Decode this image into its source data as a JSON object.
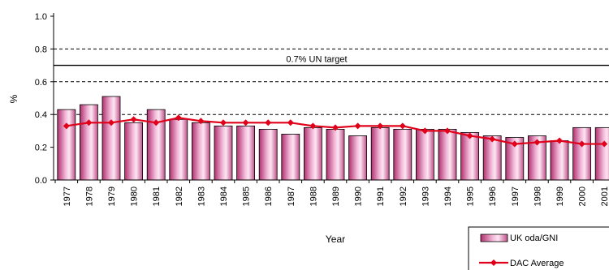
{
  "chart_data": {
    "type": "bar",
    "title": "",
    "xlabel": "Year",
    "ylabel": "%",
    "ylim": [
      0,
      1.0
    ],
    "y_ticks": [
      "0.0",
      "0.2",
      "0.4",
      "0.6",
      "0.8",
      "1.0"
    ],
    "grid": "dashed at 0.4, 0.6, 0.8",
    "categories": [
      "1977",
      "1978",
      "1979",
      "1980",
      "1981",
      "1982",
      "1983",
      "1984",
      "1985",
      "1986",
      "1987",
      "1988",
      "1989",
      "1990",
      "1991",
      "1992",
      "1993",
      "1994",
      "1995",
      "1996",
      "1997",
      "1998",
      "1999",
      "2000",
      "2001"
    ],
    "series": [
      {
        "name": "UK oda/GNI",
        "type": "bar",
        "color": "#e8a0c8",
        "values": [
          0.43,
          0.46,
          0.51,
          0.35,
          0.43,
          0.37,
          0.35,
          0.33,
          0.33,
          0.31,
          0.28,
          0.32,
          0.31,
          0.27,
          0.32,
          0.31,
          0.31,
          0.31,
          0.29,
          0.27,
          0.26,
          0.27,
          0.24,
          0.32,
          0.32
        ]
      },
      {
        "name": "DAC Average",
        "type": "line",
        "color": "#e0001a",
        "values": [
          0.33,
          0.35,
          0.35,
          0.37,
          0.35,
          0.38,
          0.36,
          0.35,
          0.35,
          0.35,
          0.35,
          0.33,
          0.32,
          0.33,
          0.33,
          0.33,
          0.3,
          0.3,
          0.27,
          0.25,
          0.22,
          0.23,
          0.24,
          0.22,
          0.22
        ]
      }
    ],
    "reference_line": {
      "label": "0.7% UN target",
      "value": 0.7
    },
    "legend_position": "bottom-right"
  }
}
